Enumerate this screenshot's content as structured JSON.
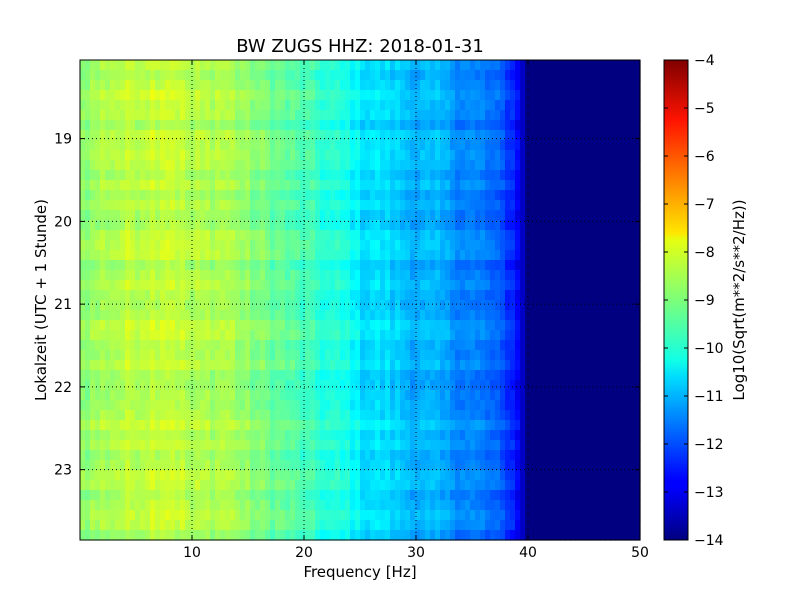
{
  "chart_data": {
    "type": "heatmap",
    "title": "BW ZUGS HHZ: 2018-01-31",
    "xlabel": "Frequency [Hz]",
    "ylabel": "Lokalzeit (UTC + 1 Stunde)",
    "colorbar_label": "Log10(Sqrt(m**2/s**2/Hz))",
    "colormap": "jet",
    "xlim": [
      0,
      50
    ],
    "ylim": [
      18.05,
      23.85
    ],
    "y_inverted": true,
    "x_ticks": [
      10,
      20,
      30,
      40,
      50
    ],
    "y_ticks": [
      19,
      20,
      21,
      22,
      23
    ],
    "colorbar_range": [
      -14,
      -4
    ],
    "colorbar_ticks": [
      -4,
      -5,
      -6,
      -7,
      -8,
      -9,
      -10,
      -11,
      -12,
      -13,
      -14
    ],
    "grid": true,
    "frequency_profile": {
      "frequency_hz": [
        0,
        2,
        5,
        8,
        10,
        13,
        15,
        18,
        20,
        22,
        24,
        25,
        27,
        30,
        32,
        34,
        36,
        38,
        39,
        40,
        50
      ],
      "log10_amplitude": [
        -8.9,
        -8.6,
        -8.4,
        -8.2,
        -8.6,
        -8.5,
        -8.9,
        -9.3,
        -9.6,
        -9.9,
        -10.1,
        -10.5,
        -10.6,
        -11.0,
        -11.1,
        -11.4,
        -11.6,
        -12.1,
        -12.6,
        -14.0,
        -14.0
      ]
    }
  }
}
